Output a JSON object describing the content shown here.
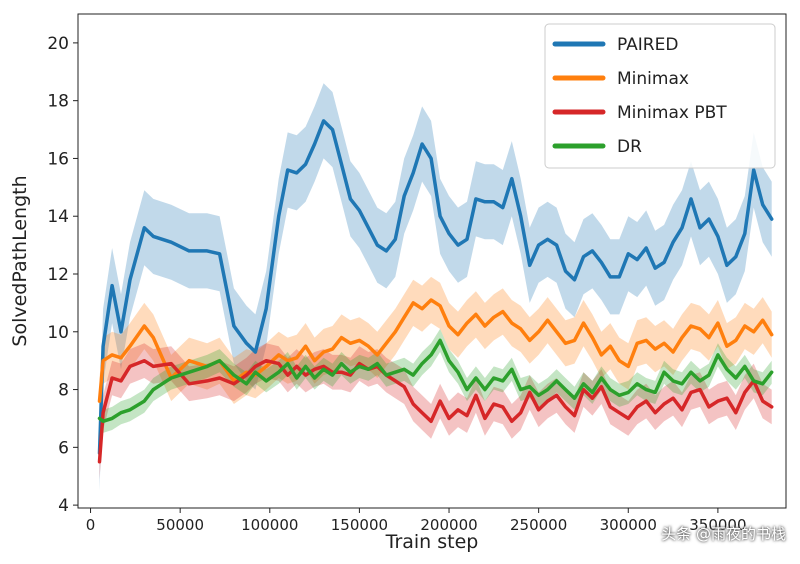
{
  "chart_data": {
    "type": "line",
    "title": "",
    "xlabel": "Train step",
    "ylabel": "SolvedPathLength",
    "xlim": [
      -7000,
      388000
    ],
    "ylim": [
      3.9,
      21
    ],
    "xticks": [
      0,
      50000,
      100000,
      150000,
      200000,
      250000,
      300000,
      350000
    ],
    "xtick_labels": [
      "0",
      "50000",
      "100000",
      "150000",
      "200000",
      "250000",
      "300000",
      "350000"
    ],
    "yticks": [
      4,
      6,
      8,
      10,
      12,
      14,
      16,
      18,
      20
    ],
    "ytick_labels": [
      "4",
      "6",
      "8",
      "10",
      "12",
      "14",
      "16",
      "18",
      "20"
    ],
    "grid": false,
    "legend_position": "top-right",
    "series": [
      {
        "name": "PAIRED",
        "color": "#1f77b4",
        "x": [
          5000,
          7000,
          12000,
          17000,
          22000,
          30000,
          35000,
          45000,
          55000,
          65000,
          72000,
          80000,
          87000,
          92000,
          98000,
          105000,
          110000,
          115000,
          120000,
          125000,
          130000,
          135000,
          140000,
          145000,
          150000,
          155000,
          160000,
          165000,
          170000,
          175000,
          180000,
          185000,
          190000,
          195000,
          200000,
          205000,
          210000,
          215000,
          220000,
          225000,
          230000,
          235000,
          240000,
          245000,
          250000,
          255000,
          260000,
          265000,
          270000,
          275000,
          280000,
          285000,
          290000,
          295000,
          300000,
          305000,
          310000,
          315000,
          320000,
          325000,
          330000,
          335000,
          340000,
          345000,
          350000,
          355000,
          360000,
          365000,
          370000,
          375000,
          380000
        ],
        "values": [
          5.8,
          9.5,
          11.6,
          10.0,
          11.8,
          13.6,
          13.3,
          13.1,
          12.8,
          12.8,
          12.7,
          10.2,
          9.6,
          9.3,
          10.8,
          14.0,
          15.6,
          15.5,
          15.8,
          16.5,
          17.3,
          17.0,
          15.8,
          14.6,
          14.2,
          13.6,
          13.0,
          12.8,
          13.2,
          14.7,
          15.5,
          16.5,
          16.0,
          14.0,
          13.4,
          13.0,
          13.2,
          14.6,
          14.5,
          14.5,
          14.3,
          15.3,
          14.0,
          12.3,
          13.0,
          13.2,
          13.0,
          12.1,
          11.8,
          12.6,
          12.8,
          12.4,
          11.9,
          11.9,
          12.7,
          12.5,
          12.9,
          12.2,
          12.4,
          13.1,
          13.6,
          14.6,
          13.6,
          13.9,
          13.3,
          12.3,
          12.6,
          13.4,
          15.6,
          14.4,
          13.9
        ]
      },
      {
        "name": "Minimax",
        "color": "#ff7f0e",
        "x": [
          5000,
          7000,
          12000,
          17000,
          22000,
          30000,
          35000,
          45000,
          55000,
          65000,
          72000,
          80000,
          87000,
          92000,
          98000,
          105000,
          110000,
          115000,
          120000,
          125000,
          130000,
          135000,
          140000,
          145000,
          150000,
          155000,
          160000,
          165000,
          170000,
          175000,
          180000,
          185000,
          190000,
          195000,
          200000,
          205000,
          210000,
          215000,
          220000,
          225000,
          230000,
          235000,
          240000,
          245000,
          250000,
          255000,
          260000,
          265000,
          270000,
          275000,
          280000,
          285000,
          290000,
          295000,
          300000,
          305000,
          310000,
          315000,
          320000,
          325000,
          330000,
          335000,
          340000,
          345000,
          350000,
          355000,
          360000,
          365000,
          370000,
          375000,
          380000
        ],
        "values": [
          7.6,
          9.0,
          9.2,
          9.1,
          9.5,
          10.2,
          9.8,
          8.4,
          9.0,
          8.8,
          9.0,
          8.3,
          8.6,
          8.5,
          8.8,
          9.2,
          9.0,
          9.1,
          9.5,
          9.0,
          9.3,
          9.4,
          9.8,
          9.6,
          9.7,
          9.5,
          9.2,
          9.6,
          10.0,
          10.5,
          11.0,
          10.8,
          11.1,
          10.9,
          10.2,
          9.9,
          10.3,
          10.6,
          10.2,
          10.5,
          10.7,
          10.3,
          10.1,
          9.7,
          10.0,
          10.4,
          10.0,
          9.6,
          9.7,
          10.3,
          9.8,
          9.2,
          9.5,
          9.0,
          8.8,
          9.6,
          9.7,
          9.4,
          9.6,
          9.3,
          9.8,
          10.2,
          10.1,
          9.8,
          10.3,
          9.5,
          9.7,
          10.2,
          10.0,
          10.4,
          9.9
        ]
      },
      {
        "name": "Minimax PBT",
        "color": "#d62728",
        "x": [
          5000,
          7000,
          12000,
          17000,
          22000,
          30000,
          35000,
          45000,
          55000,
          65000,
          72000,
          80000,
          87000,
          92000,
          98000,
          105000,
          110000,
          115000,
          120000,
          125000,
          130000,
          135000,
          140000,
          145000,
          150000,
          155000,
          160000,
          165000,
          170000,
          175000,
          180000,
          185000,
          190000,
          195000,
          200000,
          205000,
          210000,
          215000,
          220000,
          225000,
          230000,
          235000,
          240000,
          245000,
          250000,
          255000,
          260000,
          265000,
          270000,
          275000,
          280000,
          285000,
          290000,
          295000,
          300000,
          305000,
          310000,
          315000,
          320000,
          325000,
          330000,
          335000,
          340000,
          345000,
          350000,
          355000,
          360000,
          365000,
          370000,
          375000,
          380000
        ],
        "values": [
          5.5,
          7.2,
          8.4,
          8.3,
          8.8,
          9.0,
          8.8,
          8.9,
          8.2,
          8.3,
          8.4,
          8.2,
          8.5,
          8.8,
          9.0,
          8.9,
          8.5,
          8.8,
          8.5,
          8.7,
          8.8,
          8.6,
          8.6,
          8.5,
          8.9,
          8.7,
          8.8,
          8.5,
          8.3,
          8.1,
          7.5,
          7.2,
          6.9,
          7.6,
          7.0,
          7.3,
          7.1,
          7.8,
          7.0,
          7.5,
          7.4,
          6.9,
          7.2,
          7.9,
          7.3,
          7.6,
          7.8,
          7.4,
          7.1,
          8.0,
          7.7,
          8.1,
          7.4,
          7.2,
          7.0,
          7.4,
          7.6,
          7.2,
          7.5,
          7.7,
          7.3,
          7.9,
          8.0,
          7.4,
          7.6,
          7.7,
          7.2,
          7.9,
          8.3,
          7.6,
          7.4
        ]
      },
      {
        "name": "DR",
        "color": "#2ca02c",
        "x": [
          5000,
          7000,
          12000,
          17000,
          22000,
          30000,
          35000,
          45000,
          55000,
          65000,
          72000,
          80000,
          87000,
          92000,
          98000,
          105000,
          110000,
          115000,
          120000,
          125000,
          130000,
          135000,
          140000,
          145000,
          150000,
          155000,
          160000,
          165000,
          170000,
          175000,
          180000,
          185000,
          190000,
          195000,
          200000,
          205000,
          210000,
          215000,
          220000,
          225000,
          230000,
          235000,
          240000,
          245000,
          250000,
          255000,
          260000,
          265000,
          270000,
          275000,
          280000,
          285000,
          290000,
          295000,
          300000,
          305000,
          310000,
          315000,
          320000,
          325000,
          330000,
          335000,
          340000,
          345000,
          350000,
          355000,
          360000,
          365000,
          370000,
          375000,
          380000
        ],
        "values": [
          7.0,
          6.9,
          7.0,
          7.2,
          7.3,
          7.6,
          8.0,
          8.4,
          8.6,
          8.8,
          9.0,
          8.5,
          8.2,
          8.6,
          8.3,
          8.6,
          8.9,
          8.4,
          8.8,
          8.4,
          8.7,
          8.5,
          8.9,
          8.6,
          8.8,
          8.7,
          8.9,
          8.5,
          8.6,
          8.7,
          8.5,
          8.9,
          9.2,
          9.7,
          9.0,
          8.6,
          8.0,
          8.4,
          8.0,
          8.4,
          8.3,
          8.7,
          8.0,
          8.1,
          7.8,
          8.0,
          8.3,
          8.0,
          7.7,
          8.2,
          7.9,
          8.4,
          8.0,
          7.8,
          7.9,
          8.2,
          8.0,
          7.9,
          8.6,
          8.3,
          8.2,
          8.6,
          8.3,
          8.5,
          9.2,
          8.7,
          8.4,
          8.8,
          8.3,
          8.2,
          8.6
        ]
      }
    ]
  },
  "watermark": "头条 @雨夜的书栈"
}
